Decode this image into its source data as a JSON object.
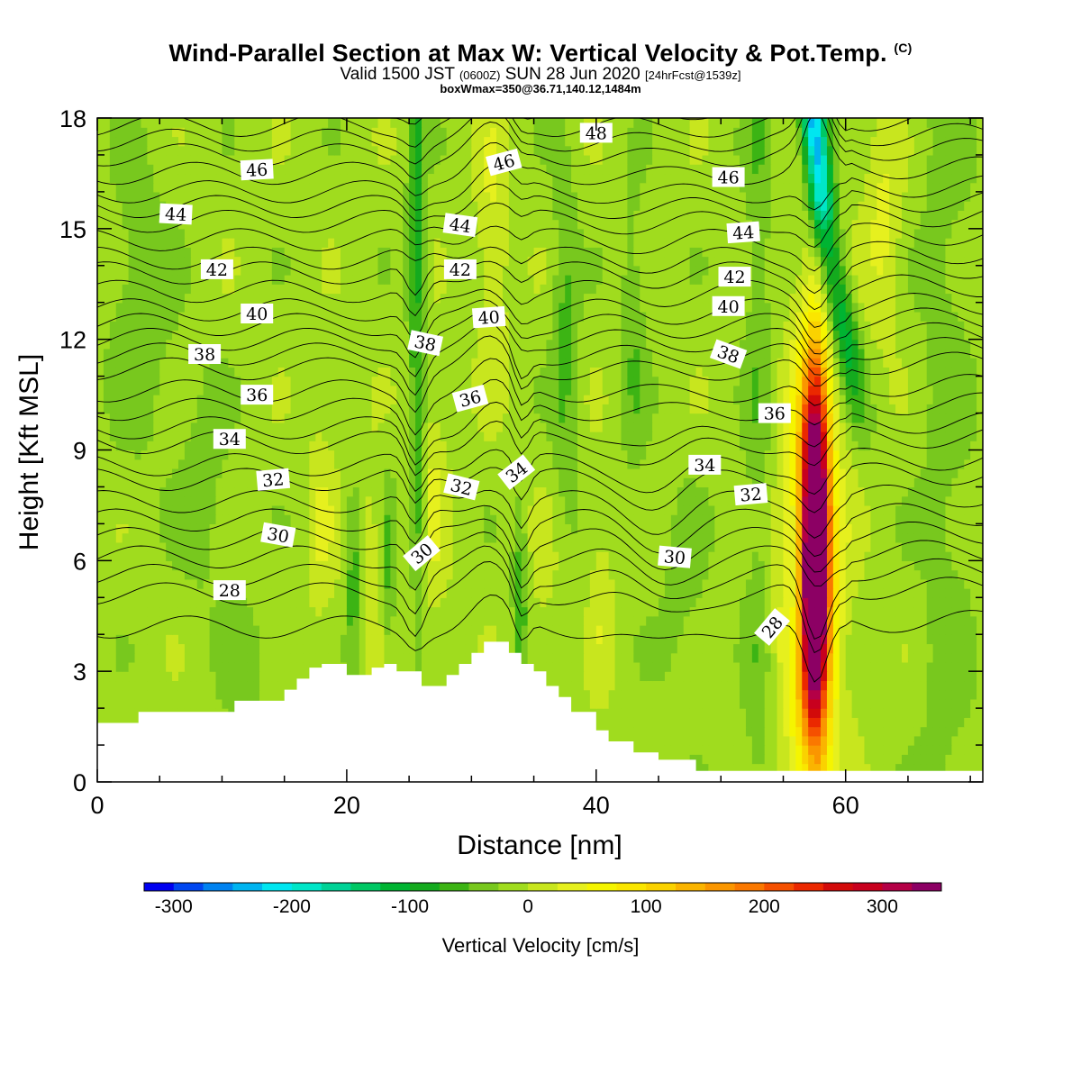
{
  "header": {
    "title": "Wind-Parallel Section at Max W: Vertical Velocity & Pot.Temp.",
    "copyright": "(C)",
    "subtitle_main": "Valid 1500 JST",
    "subtitle_zulu": "(0600Z)",
    "subtitle_date": "SUN 28 Jun 2020",
    "subtitle_fcst": "[24hrFcst@1539z]",
    "subtitle2": "boxWmax=350@36.71,140.12,1484m"
  },
  "chart_data": {
    "type": "heatmap",
    "title": "Wind-Parallel Section at Max W: Vertical Velocity & Pot.Temp.",
    "xlabel": "Distance [nm]",
    "ylabel": "Height [Kft MSL]",
    "xlim": [
      0,
      71
    ],
    "ylim": [
      0,
      18
    ],
    "x_ticks": [
      0,
      20,
      40,
      60
    ],
    "y_ticks": [
      0,
      3,
      6,
      9,
      12,
      15,
      18
    ],
    "colorbar": {
      "label": "Vertical Velocity [cm/s]",
      "range": [
        -325,
        350
      ],
      "ticks": [
        -300,
        -200,
        -100,
        0,
        100,
        200,
        300
      ],
      "step": 25,
      "colors": [
        "#0000f0",
        "#0046f0",
        "#0082f0",
        "#00b4f0",
        "#00e6f0",
        "#00e6c8",
        "#00d296",
        "#00c864",
        "#00b432",
        "#14aa1e",
        "#3cb414",
        "#78c81e",
        "#a0dc1e",
        "#c8e61e",
        "#e6f01e",
        "#f5f500",
        "#fae600",
        "#fad200",
        "#fab400",
        "#fa9600",
        "#fa7800",
        "#f55000",
        "#eb2800",
        "#d20a0a",
        "#c8001e",
        "#b40046",
        "#8c0064"
      ]
    },
    "terrain": [
      [
        0,
        1.6
      ],
      [
        3.3,
        1.6
      ],
      [
        3.3,
        1.9
      ],
      [
        11,
        1.9
      ],
      [
        11,
        2.2
      ],
      [
        15,
        2.2
      ],
      [
        15,
        2.5
      ],
      [
        16,
        2.5
      ],
      [
        16,
        2.8
      ],
      [
        17,
        2.8
      ],
      [
        17,
        3.1
      ],
      [
        18,
        3.1
      ],
      [
        18,
        3.2
      ],
      [
        20,
        3.2
      ],
      [
        20,
        2.9
      ],
      [
        22,
        2.9
      ],
      [
        22,
        3.1
      ],
      [
        23,
        3.1
      ],
      [
        23,
        3.2
      ],
      [
        24,
        3.2
      ],
      [
        24,
        3.0
      ],
      [
        26,
        3.0
      ],
      [
        26,
        2.6
      ],
      [
        28,
        2.6
      ],
      [
        28,
        2.9
      ],
      [
        29,
        2.9
      ],
      [
        29,
        3.2
      ],
      [
        30,
        3.2
      ],
      [
        30,
        3.5
      ],
      [
        31,
        3.5
      ],
      [
        31,
        3.8
      ],
      [
        33,
        3.8
      ],
      [
        33,
        3.5
      ],
      [
        34,
        3.5
      ],
      [
        34,
        3.2
      ],
      [
        35,
        3.2
      ],
      [
        35,
        3.0
      ],
      [
        36,
        3.0
      ],
      [
        36,
        2.6
      ],
      [
        37,
        2.6
      ],
      [
        37,
        2.3
      ],
      [
        38,
        2.3
      ],
      [
        38,
        1.9
      ],
      [
        40,
        1.9
      ],
      [
        40,
        1.4
      ],
      [
        41,
        1.4
      ],
      [
        41,
        1.1
      ],
      [
        43,
        1.1
      ],
      [
        43,
        0.8
      ],
      [
        45,
        0.8
      ],
      [
        45,
        0.6
      ],
      [
        48,
        0.6
      ],
      [
        48,
        0.3
      ],
      [
        55,
        0.3
      ],
      [
        55,
        0.3
      ],
      [
        71,
        0.3
      ]
    ],
    "theta_contours_K": [
      28,
      30,
      32,
      34,
      36,
      38,
      40,
      42,
      44,
      46,
      48
    ],
    "contour_labels": [
      {
        "text": "46",
        "x": 12.8,
        "y": 16.6,
        "angle": -3
      },
      {
        "text": "44",
        "x": 6.3,
        "y": 15.4,
        "angle": 3
      },
      {
        "text": "42",
        "x": 9.6,
        "y": 13.9,
        "angle": 0
      },
      {
        "text": "40",
        "x": 12.8,
        "y": 12.7,
        "angle": 0
      },
      {
        "text": "38",
        "x": 8.6,
        "y": 11.6,
        "angle": 0
      },
      {
        "text": "36",
        "x": 12.8,
        "y": 10.5,
        "angle": 0
      },
      {
        "text": "34",
        "x": 10.6,
        "y": 9.3,
        "angle": 0
      },
      {
        "text": "32",
        "x": 14.1,
        "y": 8.2,
        "angle": -5
      },
      {
        "text": "30",
        "x": 14.5,
        "y": 6.7,
        "angle": 10
      },
      {
        "text": "28",
        "x": 10.6,
        "y": 5.2,
        "angle": 0
      },
      {
        "text": "48",
        "x": 40.0,
        "y": 17.6,
        "angle": 0
      },
      {
        "text": "46",
        "x": 32.6,
        "y": 16.8,
        "angle": -15
      },
      {
        "text": "44",
        "x": 29.1,
        "y": 15.1,
        "angle": 8
      },
      {
        "text": "42",
        "x": 29.1,
        "y": 13.9,
        "angle": 0
      },
      {
        "text": "40",
        "x": 31.4,
        "y": 12.6,
        "angle": -4
      },
      {
        "text": "38",
        "x": 26.3,
        "y": 11.9,
        "angle": 12
      },
      {
        "text": "36",
        "x": 29.9,
        "y": 10.4,
        "angle": -15
      },
      {
        "text": "34",
        "x": 33.6,
        "y": 8.4,
        "angle": -38
      },
      {
        "text": "32",
        "x": 29.2,
        "y": 8.0,
        "angle": 14
      },
      {
        "text": "30",
        "x": 26.0,
        "y": 6.2,
        "angle": -40
      },
      {
        "text": "46",
        "x": 50.6,
        "y": 16.4,
        "angle": 0
      },
      {
        "text": "44",
        "x": 51.8,
        "y": 14.9,
        "angle": -4
      },
      {
        "text": "42",
        "x": 51.1,
        "y": 13.7,
        "angle": 0
      },
      {
        "text": "40",
        "x": 50.6,
        "y": 12.9,
        "angle": 0
      },
      {
        "text": "38",
        "x": 50.6,
        "y": 11.6,
        "angle": 20
      },
      {
        "text": "36",
        "x": 54.3,
        "y": 10.0,
        "angle": 0
      },
      {
        "text": "34",
        "x": 48.7,
        "y": 8.6,
        "angle": 0
      },
      {
        "text": "32",
        "x": 52.4,
        "y": 7.8,
        "angle": -5
      },
      {
        "text": "30",
        "x": 46.3,
        "y": 6.1,
        "angle": 5
      },
      {
        "text": "28",
        "x": 54.1,
        "y": 4.2,
        "angle": -50
      }
    ]
  }
}
